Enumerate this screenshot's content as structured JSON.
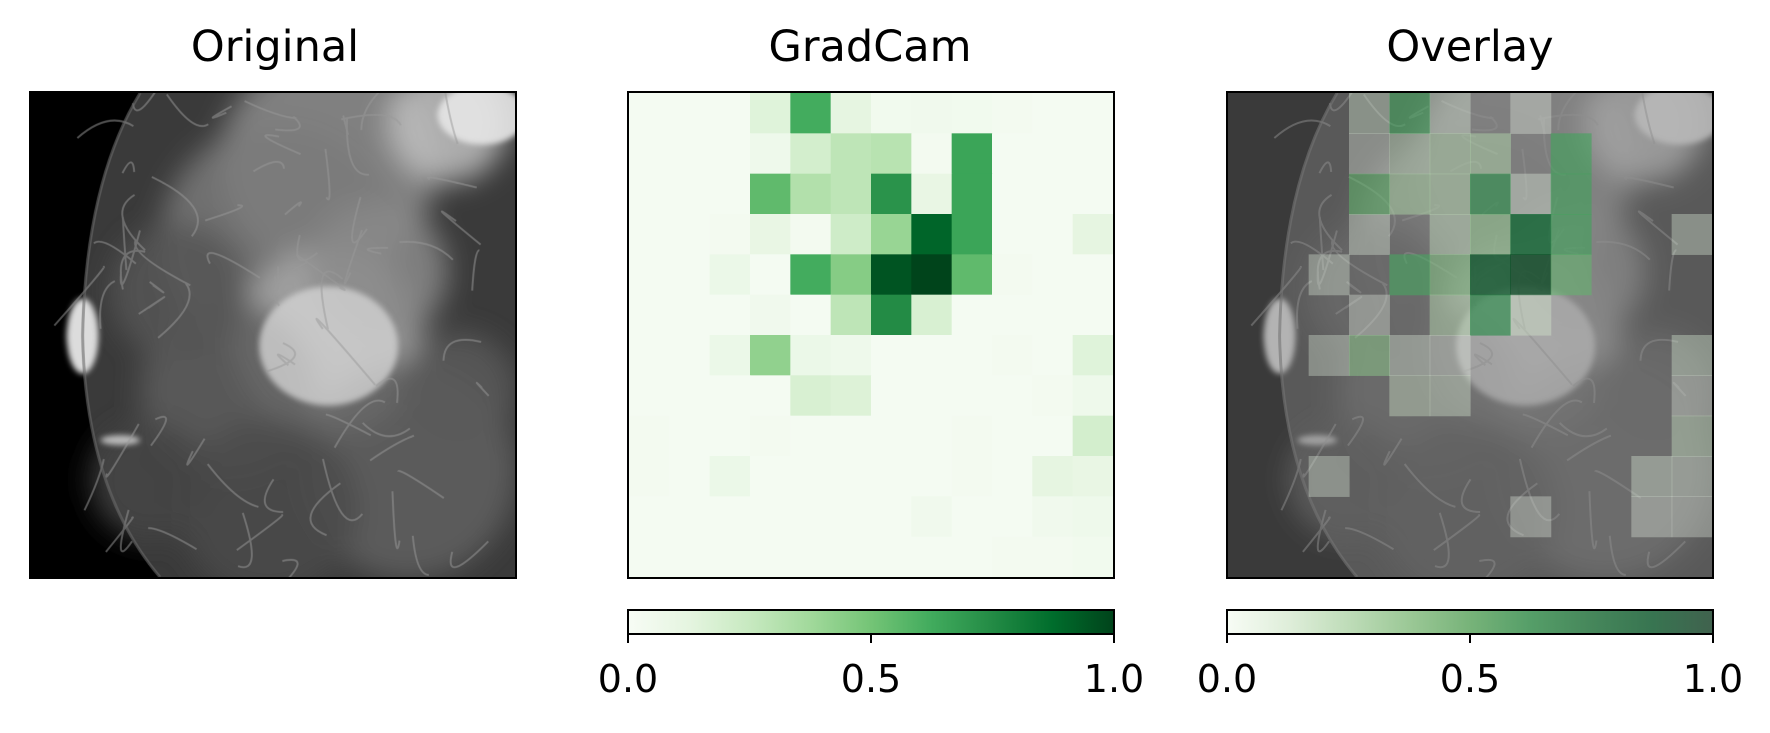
{
  "colors": {
    "greens": [
      "#f7fcf5",
      "#e5f5e0",
      "#c7e9c0",
      "#a1d99b",
      "#74c476",
      "#41ab5d",
      "#238b45",
      "#006d2c",
      "#00441b"
    ],
    "overlay_background": "#808080"
  },
  "chart_data": [
    {
      "type": "image",
      "title": "Original",
      "description_of_content": "grayscale mammogram"
    },
    {
      "type": "heatmap",
      "title": "GradCam",
      "colormap": "Greens",
      "grid": [
        12,
        12
      ],
      "values": [
        [
          0.02,
          0.02,
          0.02,
          0.15,
          0.62,
          0.12,
          0.04,
          0.05,
          0.04,
          0.03,
          0.02,
          0.02
        ],
        [
          0.02,
          0.02,
          0.02,
          0.06,
          0.2,
          0.28,
          0.3,
          0.03,
          0.65,
          0.02,
          0.02,
          0.02
        ],
        [
          0.02,
          0.02,
          0.02,
          0.55,
          0.32,
          0.28,
          0.72,
          0.1,
          0.65,
          0.02,
          0.02,
          0.02
        ],
        [
          0.02,
          0.02,
          0.03,
          0.1,
          0.03,
          0.22,
          0.4,
          0.9,
          0.65,
          0.02,
          0.02,
          0.12
        ],
        [
          0.02,
          0.02,
          0.08,
          0.02,
          0.62,
          0.45,
          0.95,
          1.0,
          0.55,
          0.03,
          0.02,
          0.02
        ],
        [
          0.02,
          0.02,
          0.02,
          0.05,
          0.02,
          0.28,
          0.75,
          0.18,
          0.02,
          0.02,
          0.02,
          0.02
        ],
        [
          0.02,
          0.02,
          0.08,
          0.42,
          0.08,
          0.06,
          0.02,
          0.02,
          0.02,
          0.03,
          0.02,
          0.15
        ],
        [
          0.02,
          0.02,
          0.02,
          0.02,
          0.18,
          0.16,
          0.02,
          0.02,
          0.02,
          0.02,
          0.03,
          0.06
        ],
        [
          0.03,
          0.02,
          0.02,
          0.03,
          0.02,
          0.02,
          0.02,
          0.02,
          0.03,
          0.02,
          0.02,
          0.2
        ],
        [
          0.03,
          0.02,
          0.08,
          0.02,
          0.02,
          0.02,
          0.02,
          0.02,
          0.03,
          0.02,
          0.12,
          0.1
        ],
        [
          0.02,
          0.02,
          0.02,
          0.02,
          0.02,
          0.02,
          0.02,
          0.05,
          0.02,
          0.02,
          0.05,
          0.06
        ],
        [
          0.02,
          0.02,
          0.02,
          0.02,
          0.02,
          0.02,
          0.02,
          0.02,
          0.02,
          0.03,
          0.03,
          0.04
        ]
      ],
      "colorbar": {
        "ticks": [
          "0.0",
          "0.5",
          "1.0"
        ],
        "range": [
          0,
          1
        ]
      }
    },
    {
      "type": "heatmap",
      "title": "Overlay",
      "colormap": "Greens (alpha 0.5) over grayscale mammogram",
      "colorbar": {
        "ticks": [
          "0.0",
          "0.5",
          "1.0"
        ],
        "range": [
          0,
          1
        ]
      }
    }
  ]
}
